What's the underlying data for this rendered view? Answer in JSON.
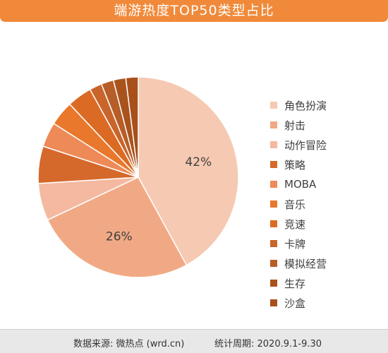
{
  "title": "端游热度TOP50类型占比",
  "footer": {
    "source": "数据来源: 微热点 (wrd.cn)",
    "period": "统计周期: 2020.9.1-9.30"
  },
  "colors": {
    "header": "#f08a3a",
    "footer_bg": "#e8e8e8"
  },
  "chart_data": {
    "type": "pie",
    "labels": [
      "角色扮演",
      "射击",
      "动作冒险",
      "策略",
      "MOBA",
      "音乐",
      "竞速",
      "卡牌",
      "模拟经营",
      "生存",
      "沙盒"
    ],
    "values": [
      42,
      26,
      6,
      6,
      4,
      4,
      4,
      2,
      2,
      2,
      2
    ],
    "value_labels": [
      "42%",
      "26%",
      "",
      "",
      "",
      "",
      "",
      "",
      "",
      "",
      ""
    ],
    "colors": [
      "#f6c9b2",
      "#f1a985",
      "#f4b9a0",
      "#d5692b",
      "#ee8a58",
      "#e9782c",
      "#db6b24",
      "#c9652b",
      "#b75d28",
      "#a9531c",
      "#a84f1a"
    ],
    "legend_position": "right"
  }
}
